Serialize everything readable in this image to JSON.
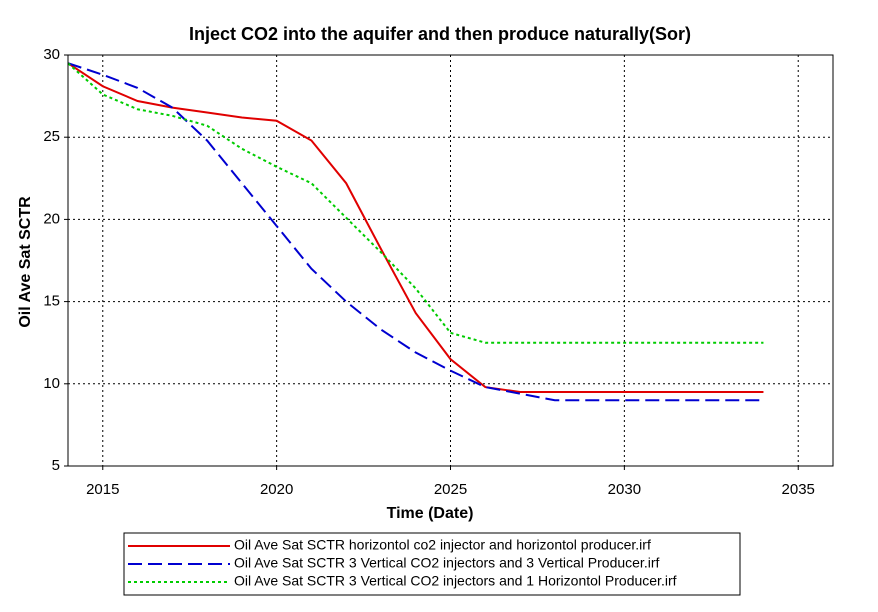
{
  "chart_data": {
    "type": "line",
    "title": "Inject CO2 into the aquifer and then produce naturally(Sor)",
    "x_label": "Time (Date)",
    "y_label": "Oil Ave Sat SCTR",
    "x": [
      2014,
      2015,
      2016,
      2017,
      2018,
      2019,
      2020,
      2021,
      2022,
      2023,
      2024,
      2025,
      2026,
      2027,
      2028,
      2029,
      2030,
      2031,
      2032,
      2033,
      2034
    ],
    "series": [
      {
        "name": "Oil Ave Sat SCTR horizontol co2 injector and horizontol producer.irf",
        "color": "#e00000",
        "dash": "solid",
        "values": [
          29.5,
          28.1,
          27.2,
          26.8,
          26.5,
          26.2,
          26.0,
          24.8,
          22.2,
          18.2,
          14.3,
          11.5,
          9.8,
          9.5,
          9.5,
          9.5,
          9.5,
          9.5,
          9.5,
          9.5,
          9.5
        ]
      },
      {
        "name": "Oil Ave Sat SCTR 3 Vertical CO2 injectors and 3 Vertical Producer.irf",
        "color": "#0000d0",
        "dash": "dashed",
        "values": [
          29.5,
          28.8,
          28.0,
          26.8,
          24.8,
          22.2,
          19.6,
          17.0,
          15.0,
          13.3,
          11.9,
          10.8,
          9.8,
          9.4,
          9.0,
          9.0,
          9.0,
          9.0,
          9.0,
          9.0,
          9.0
        ]
      },
      {
        "name": "Oil Ave Sat SCTR 3 Vertical CO2 injectors and 1 Horizontol Producer.irf",
        "color": "#00cc00",
        "dash": "dotted",
        "values": [
          29.5,
          27.6,
          26.7,
          26.3,
          25.7,
          24.3,
          23.2,
          22.2,
          20.1,
          18.0,
          15.8,
          13.1,
          12.5,
          12.5,
          12.5,
          12.5,
          12.5,
          12.5,
          12.5,
          12.5,
          12.5
        ]
      }
    ],
    "xlim": [
      2014,
      2036
    ],
    "xticks": [
      2015,
      2020,
      2025,
      2030,
      2035
    ],
    "ylim": [
      5,
      30
    ],
    "yticks": [
      5,
      10,
      15,
      20,
      25,
      30
    ],
    "grid": true,
    "legend": "bottom"
  }
}
